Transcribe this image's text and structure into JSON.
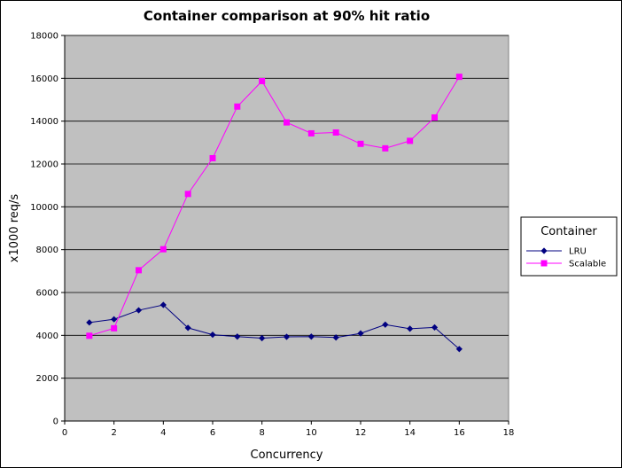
{
  "chart_data": {
    "type": "line",
    "title": "Container comparison at 90% hit ratio",
    "xlabel": "Concurrency",
    "ylabel": "x1000 req/s",
    "xlim": [
      0,
      18
    ],
    "ylim": [
      0,
      18000
    ],
    "x_ticks": [
      "0",
      "2",
      "4",
      "6",
      "8",
      "10",
      "12",
      "14",
      "16",
      "18"
    ],
    "y_ticks": [
      "0",
      "2000",
      "4000",
      "6000",
      "8000",
      "10000",
      "12000",
      "14000",
      "16000",
      "18000"
    ],
    "grid": "horizontal",
    "background": "#c0c0c0",
    "legend": {
      "title": "Container",
      "placement": "right"
    },
    "x": [
      1,
      2,
      3,
      4,
      5,
      6,
      7,
      8,
      9,
      10,
      11,
      12,
      13,
      14,
      15,
      16
    ],
    "series": [
      {
        "name": "LRU",
        "color": "#000080",
        "marker": "diamond",
        "values": [
          4600,
          4750,
          5170,
          5420,
          4350,
          4030,
          3940,
          3870,
          3930,
          3940,
          3900,
          4090,
          4500,
          4310,
          4370,
          3360
        ]
      },
      {
        "name": "Scalable",
        "color": "#ff00ff",
        "marker": "square",
        "values": [
          3980,
          4330,
          7040,
          8020,
          10600,
          12270,
          14680,
          15870,
          13940,
          13430,
          13470,
          12940,
          12730,
          13080,
          14170,
          16070
        ]
      }
    ]
  }
}
